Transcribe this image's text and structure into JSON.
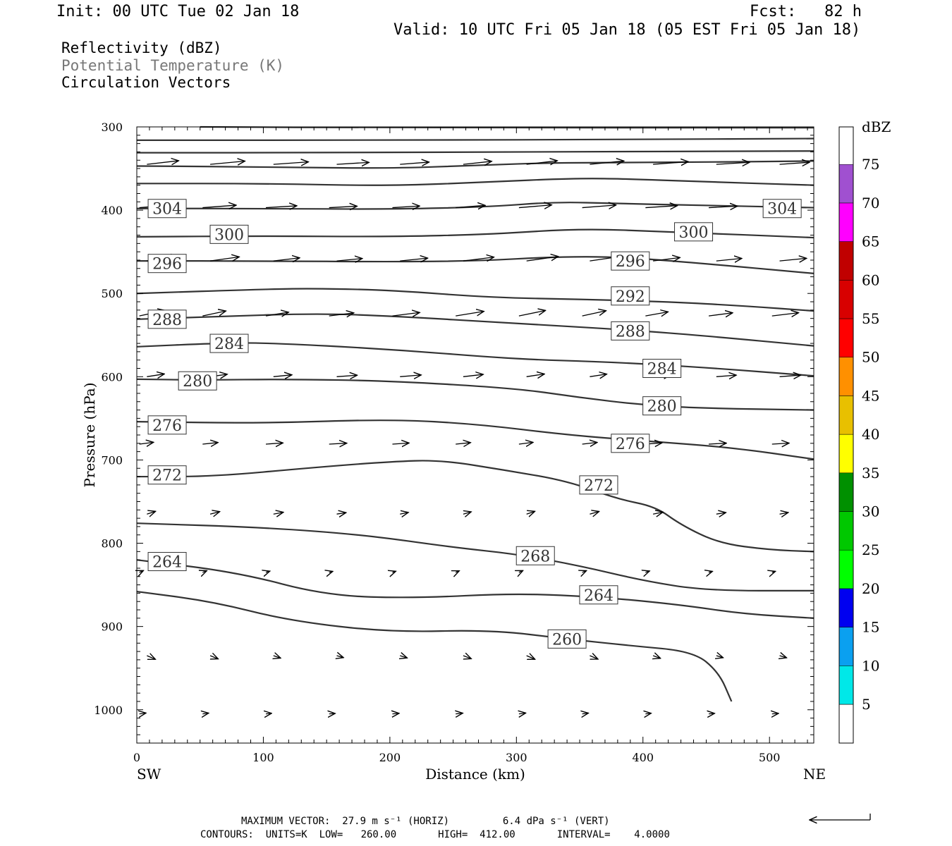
{
  "header": {
    "init": "Init: 00 UTC Tue 02 Jan 18",
    "fcst": "Fcst:   82 h",
    "valid": "Valid: 10 UTC Fri 05 Jan 18 (05 EST Fri 05 Jan 18)"
  },
  "fields": [
    "Reflectivity (dBZ)",
    "Potential Temperature (K)",
    "Circulation Vectors"
  ],
  "footer": {
    "max_vector": "MAXIMUM VECTOR:  27.9 m s⁻¹ (HORIZ)         6.4 dPa s⁻¹ (VERT)",
    "contours": "CONTOURS:  UNITS=K  LOW=   260.00       HIGH=  412.00       INTERVAL=    4.0000"
  },
  "colorbar": {
    "unit": "dBZ",
    "levels": [
      5,
      10,
      15,
      20,
      25,
      30,
      35,
      40,
      45,
      50,
      55,
      60,
      65,
      70,
      75
    ],
    "colors": [
      "#00e8e8",
      "#0aa0f0",
      "#0000f0",
      "#00ff00",
      "#00c800",
      "#009000",
      "#ffff00",
      "#e8c000",
      "#ff9000",
      "#ff0000",
      "#d80000",
      "#c00000",
      "#ff00ff",
      "#a050d0",
      "#ffffff"
    ]
  },
  "chart_data": {
    "type": "cross-section contour",
    "xlabel": "Distance (km)",
    "ylabel": "Pressure (hPa)",
    "x_end_labels": [
      "SW",
      "NE"
    ],
    "xlim": [
      0,
      535
    ],
    "ylim": [
      300,
      1040
    ],
    "xticks": [
      0,
      100,
      200,
      300,
      400,
      500
    ],
    "yticks": [
      300,
      400,
      500,
      600,
      700,
      800,
      900,
      1000
    ],
    "contours": [
      {
        "value": 260,
        "label": "260",
        "points": [
          [
            0,
            858
          ],
          [
            60,
            870
          ],
          [
            120,
            893
          ],
          [
            200,
            907
          ],
          [
            280,
            904
          ],
          [
            340,
            915
          ],
          [
            390,
            923
          ],
          [
            440,
            930
          ],
          [
            460,
            955
          ],
          [
            470,
            990
          ]
        ],
        "labels_at": [
          [
            340,
            915
          ]
        ]
      },
      {
        "value": 264,
        "label": "264",
        "points": [
          [
            0,
            820
          ],
          [
            80,
            835
          ],
          [
            150,
            863
          ],
          [
            220,
            866
          ],
          [
            300,
            860
          ],
          [
            370,
            865
          ],
          [
            430,
            874
          ],
          [
            480,
            885
          ],
          [
            535,
            890
          ]
        ],
        "labels_at": [
          [
            24,
            822
          ],
          [
            365,
            862
          ]
        ]
      },
      {
        "value": 268,
        "label": "268",
        "points": [
          [
            0,
            776
          ],
          [
            100,
            781
          ],
          [
            180,
            790
          ],
          [
            250,
            805
          ],
          [
            300,
            813
          ],
          [
            350,
            827
          ],
          [
            400,
            845
          ],
          [
            450,
            857
          ],
          [
            535,
            857
          ]
        ],
        "labels_at": [
          [
            315,
            815
          ]
        ]
      },
      {
        "value": 272,
        "label": "272",
        "points": [
          [
            0,
            720
          ],
          [
            60,
            720
          ],
          [
            140,
            709
          ],
          [
            200,
            702
          ],
          [
            240,
            700
          ],
          [
            290,
            712
          ],
          [
            340,
            725
          ],
          [
            380,
            747
          ],
          [
            410,
            756
          ],
          [
            430,
            778
          ],
          [
            460,
            800
          ],
          [
            500,
            808
          ],
          [
            535,
            810
          ]
        ],
        "labels_at": [
          [
            24,
            718
          ],
          [
            365,
            730
          ]
        ]
      },
      {
        "value": 276,
        "label": "276",
        "points": [
          [
            0,
            654
          ],
          [
            100,
            656
          ],
          [
            200,
            651
          ],
          [
            270,
            657
          ],
          [
            340,
            670
          ],
          [
            400,
            677
          ],
          [
            470,
            685
          ],
          [
            535,
            699
          ]
        ],
        "labels_at": [
          [
            24,
            658
          ],
          [
            390,
            680
          ]
        ]
      },
      {
        "value": 280,
        "label": "280",
        "points": [
          [
            0,
            603
          ],
          [
            50,
            604
          ],
          [
            120,
            603
          ],
          [
            200,
            605
          ],
          [
            300,
            614
          ],
          [
            350,
            625
          ],
          [
            400,
            634
          ],
          [
            450,
            638
          ],
          [
            535,
            640
          ]
        ],
        "labels_at": [
          [
            48,
            605
          ],
          [
            415,
            635
          ]
        ]
      },
      {
        "value": 284,
        "label": "284",
        "points": [
          [
            0,
            564
          ],
          [
            60,
            560
          ],
          [
            100,
            559
          ],
          [
            200,
            567
          ],
          [
            300,
            579
          ],
          [
            370,
            582
          ],
          [
            450,
            589
          ],
          [
            535,
            599
          ]
        ],
        "labels_at": [
          [
            73,
            560
          ],
          [
            415,
            590
          ]
        ]
      },
      {
        "value": 288,
        "label": "288",
        "points": [
          [
            0,
            531
          ],
          [
            60,
            528
          ],
          [
            140,
            524
          ],
          [
            200,
            527
          ],
          [
            300,
            536
          ],
          [
            390,
            544
          ],
          [
            450,
            551
          ],
          [
            535,
            563
          ]
        ],
        "labels_at": [
          [
            24,
            531
          ],
          [
            390,
            545
          ]
        ]
      },
      {
        "value": 292,
        "label": "292",
        "points": [
          [
            0,
            500
          ],
          [
            100,
            495
          ],
          [
            140,
            494
          ],
          [
            200,
            496
          ],
          [
            280,
            505
          ],
          [
            350,
            507
          ],
          [
            420,
            510
          ],
          [
            480,
            515
          ],
          [
            535,
            521
          ]
        ],
        "labels_at": [
          [
            390,
            503
          ]
        ]
      },
      {
        "value": 296,
        "label": "296",
        "points": [
          [
            0,
            461
          ],
          [
            100,
            461
          ],
          [
            200,
            462
          ],
          [
            270,
            461
          ],
          [
            330,
            456
          ],
          [
            380,
            456
          ],
          [
            440,
            463
          ],
          [
            535,
            476
          ]
        ],
        "labels_at": [
          [
            24,
            464
          ],
          [
            390,
            461
          ]
        ]
      },
      {
        "value": 300,
        "label": "300",
        "points": [
          [
            0,
            432
          ],
          [
            100,
            431
          ],
          [
            200,
            432
          ],
          [
            280,
            429
          ],
          [
            350,
            422
          ],
          [
            420,
            426
          ],
          [
            535,
            433
          ]
        ],
        "labels_at": [
          [
            73,
            429
          ],
          [
            440,
            426
          ]
        ]
      },
      {
        "value": 304,
        "label": "304",
        "points": [
          [
            0,
            398
          ],
          [
            100,
            398
          ],
          [
            200,
            399
          ],
          [
            280,
            396
          ],
          [
            330,
            390
          ],
          [
            380,
            392
          ],
          [
            440,
            394
          ],
          [
            535,
            397
          ]
        ],
        "labels_at": [
          [
            24,
            398
          ],
          [
            510,
            398
          ]
        ]
      },
      {
        "value": 308,
        "label": "",
        "points": [
          [
            0,
            368
          ],
          [
            100,
            368
          ],
          [
            200,
            371
          ],
          [
            280,
            366
          ],
          [
            340,
            362
          ],
          [
            380,
            362
          ],
          [
            450,
            366
          ],
          [
            535,
            370
          ]
        ],
        "labels_at": []
      },
      {
        "value": 312,
        "label": "",
        "points": [
          [
            0,
            347
          ],
          [
            100,
            348
          ],
          [
            200,
            350
          ],
          [
            270,
            346
          ],
          [
            330,
            343
          ],
          [
            400,
            343
          ],
          [
            535,
            341
          ]
        ],
        "labels_at": []
      },
      {
        "value": 316,
        "label": "",
        "points": [
          [
            0,
            331
          ],
          [
            150,
            331
          ],
          [
            300,
            330
          ],
          [
            535,
            329
          ]
        ],
        "labels_at": []
      },
      {
        "value": 320,
        "label": "",
        "points": [
          [
            0,
            316
          ],
          [
            200,
            316
          ],
          [
            400,
            315
          ],
          [
            535,
            314
          ]
        ],
        "labels_at": []
      },
      {
        "value": 324,
        "label": "",
        "points": [
          [
            50,
            300
          ],
          [
            200,
            301
          ],
          [
            535,
            301
          ]
        ],
        "labels_at": []
      }
    ],
    "vectors_note": "Circulation vectors plotted on a grid; arrow directions/lengths approximated from the image (u = along-section km scale, w = pressure scale).",
    "vector_rows": [
      {
        "p": 345,
        "u": 50,
        "w": -4
      },
      {
        "p": 397,
        "u": 48,
        "w": -3
      },
      {
        "p": 461,
        "u": 45,
        "w": -5
      },
      {
        "p": 527,
        "u": 40,
        "w": -6
      },
      {
        "p": 600,
        "u": 30,
        "w": -3
      },
      {
        "p": 681,
        "u": 25,
        "w": -2
      },
      {
        "p": 765,
        "u": 14,
        "w": -3
      },
      {
        "p": 835,
        "u": 6,
        "w": -2
      },
      {
        "p": 935,
        "u": 12,
        "w": 4
      },
      {
        "p": 1005,
        "u": 10,
        "w": -1
      }
    ]
  }
}
